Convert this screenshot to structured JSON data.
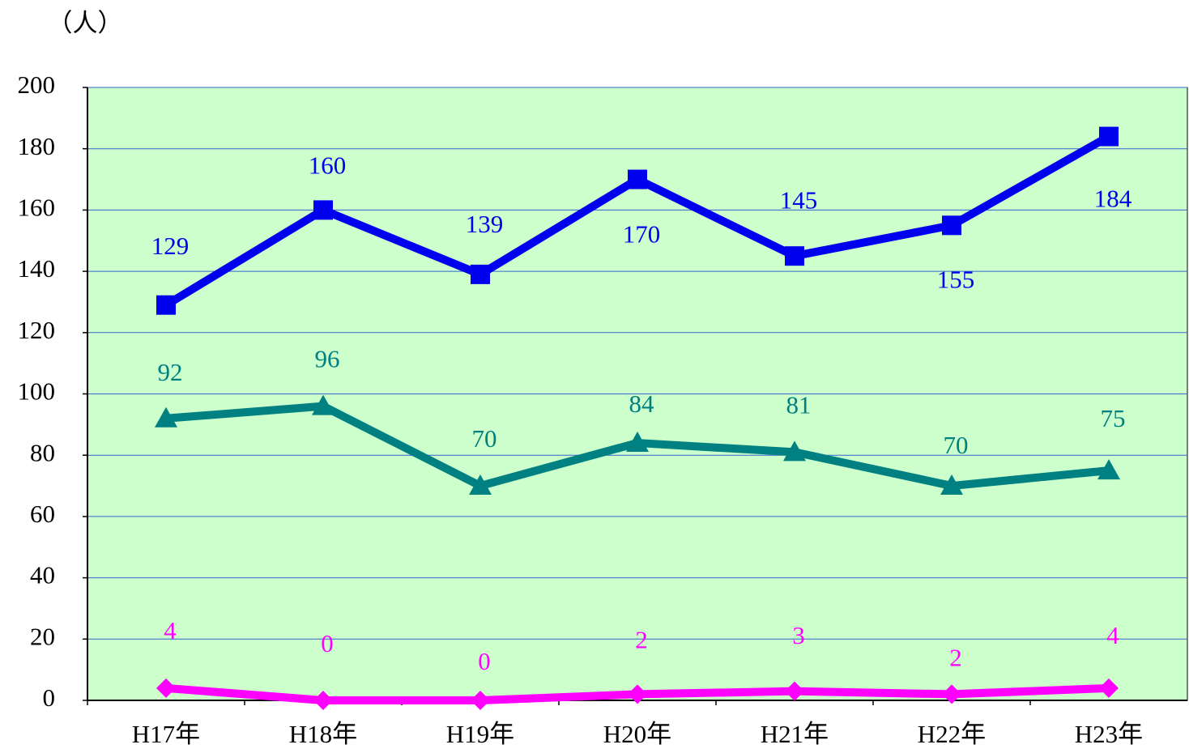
{
  "chart_data": {
    "type": "line",
    "y_unit_label": "（人）",
    "categories": [
      "H17年",
      "H18年",
      "H19年",
      "H20年",
      "H21年",
      "H22年",
      "H23年"
    ],
    "series": [
      {
        "color": "#0000ee",
        "marker": "square",
        "values": [
          129,
          160,
          139,
          170,
          145,
          155,
          184
        ]
      },
      {
        "color": "#008080",
        "marker": "triangle",
        "values": [
          92,
          96,
          70,
          84,
          81,
          70,
          75
        ]
      },
      {
        "color": "#ff00ff",
        "marker": "diamond",
        "values": [
          4,
          0,
          0,
          2,
          3,
          2,
          4
        ]
      }
    ],
    "ylim": [
      0,
      200
    ],
    "yticks": [
      0,
      20,
      40,
      60,
      80,
      100,
      120,
      140,
      160,
      180,
      200
    ],
    "grid": true,
    "plot_background": "#ccffcc"
  }
}
